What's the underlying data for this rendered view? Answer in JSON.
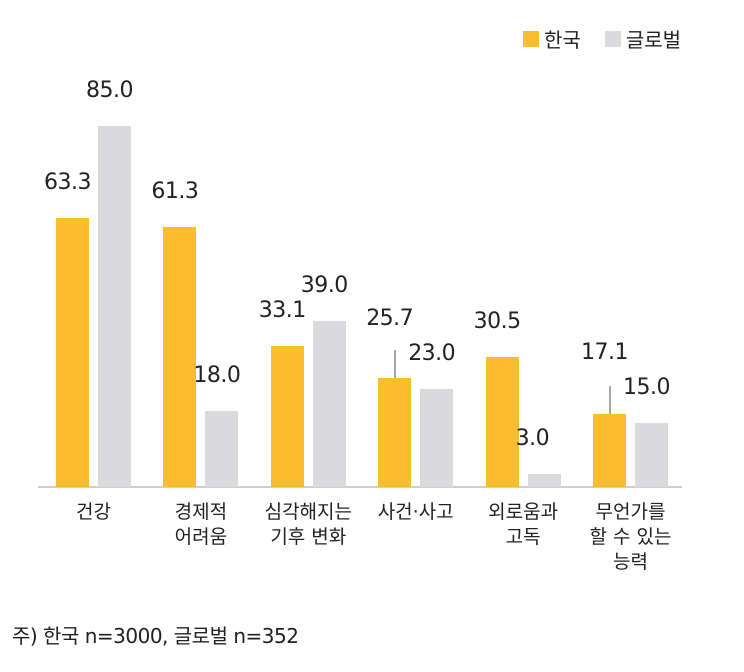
{
  "legend": [
    {
      "label": "한국",
      "color": "#FBBC2D"
    },
    {
      "label": "글로벌",
      "color": "#DADADC"
    }
  ],
  "note": "주) 한국 n=3000, 글로벌 n=352",
  "chart_data": {
    "type": "bar",
    "title": "",
    "xlabel": "",
    "ylabel": "",
    "ylim": [
      0,
      85
    ],
    "grid": false,
    "legend_position": "top-right",
    "categories": [
      "건강",
      "경제적\n어려움",
      "심각해지는\n기후 변화",
      "사건·사고",
      "외로움과\n고독",
      "무언가를\n할 수 있는\n능력"
    ],
    "series": [
      {
        "name": "한국",
        "color": "#FBBC2D",
        "values": [
          63.3,
          61.3,
          33.1,
          25.7,
          30.5,
          17.1
        ]
      },
      {
        "name": "글로벌",
        "color": "#DADADC",
        "values": [
          85.0,
          18.0,
          39.0,
          23.0,
          3.0,
          15.0
        ]
      }
    ],
    "value_labels": {
      "한국": [
        "63.3",
        "61.3",
        "33.1",
        "25.7",
        "30.5",
        "17.1"
      ],
      "글로벌": [
        "85.0",
        "18.0",
        "39.0",
        "23.0",
        "3.0",
        "15.0"
      ]
    },
    "note": "주) 한국 n=3000, 글로벌 n=352"
  }
}
